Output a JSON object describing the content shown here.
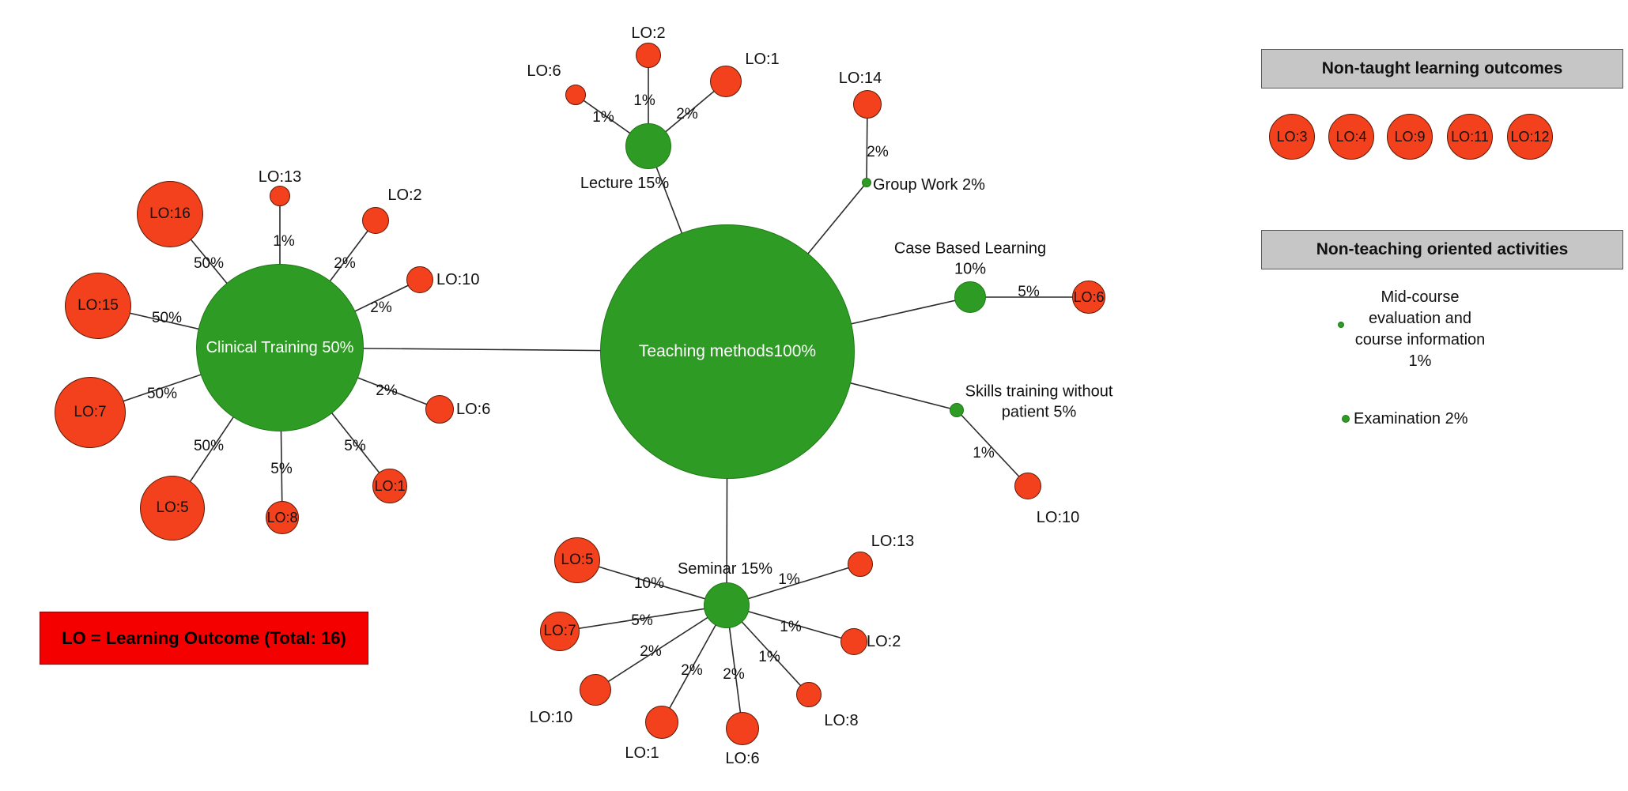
{
  "colors": {
    "method_green": "#2e9c24",
    "outcome_red": "#f2411c",
    "panel_header_gray": "#c6c6c6",
    "legend_red": "#f50000"
  },
  "legend": {
    "label": "LO = Learning Outcome (Total: 16)"
  },
  "panels": {
    "non_taught": {
      "title": "Non-taught learning outcomes",
      "outcomes": [
        "LO:3",
        "LO:4",
        "LO:9",
        "LO:11",
        "LO:12"
      ]
    },
    "non_teaching": {
      "title": "Non-teaching oriented activities",
      "activities": [
        {
          "lines": [
            "Mid-course",
            "evaluation and",
            "course information"
          ],
          "percent": "1%"
        },
        {
          "label": "Examination",
          "percent": "2%"
        }
      ]
    }
  },
  "graph": {
    "nodes": [
      {
        "id": "teaching",
        "kind": "method",
        "lines": [
          "Teaching methods",
          "100%"
        ],
        "inside": true
      },
      {
        "id": "clinical",
        "kind": "method",
        "lines": [
          "Clinical Training 50%"
        ],
        "inside": true
      },
      {
        "id": "lecture",
        "kind": "method",
        "lines": [
          "Lecture 15%"
        ],
        "inside": false
      },
      {
        "id": "groupwork",
        "kind": "method-dot",
        "lines": [
          "Group Work 2%"
        ],
        "inside": false
      },
      {
        "id": "cbl",
        "kind": "method",
        "lines": [
          "Case Based Learning",
          "10%"
        ],
        "inside": false
      },
      {
        "id": "skills",
        "kind": "method-dot",
        "lines": [
          "Skills training without",
          "patient 5%"
        ],
        "inside": false
      },
      {
        "id": "seminar",
        "kind": "method",
        "lines": [
          "Seminar 15%"
        ],
        "inside": false
      },
      {
        "id": "c16",
        "kind": "outcome",
        "lines": [
          "LO:16"
        ],
        "inside": true
      },
      {
        "id": "c13",
        "kind": "outcome",
        "lines": [
          "LO:13"
        ],
        "inside": false
      },
      {
        "id": "c2",
        "kind": "outcome",
        "lines": [
          "LO:2"
        ],
        "inside": false
      },
      {
        "id": "c15",
        "kind": "outcome",
        "lines": [
          "LO:15"
        ],
        "inside": true
      },
      {
        "id": "c10",
        "kind": "outcome",
        "lines": [
          "LO:10"
        ],
        "inside": false
      },
      {
        "id": "c7",
        "kind": "outcome",
        "lines": [
          "LO:7"
        ],
        "inside": true
      },
      {
        "id": "c6",
        "kind": "outcome",
        "lines": [
          "LO:6"
        ],
        "inside": false
      },
      {
        "id": "c5",
        "kind": "outcome",
        "lines": [
          "LO:5"
        ],
        "inside": true
      },
      {
        "id": "c8",
        "kind": "outcome",
        "lines": [
          "LO:8"
        ],
        "inside": true
      },
      {
        "id": "c1",
        "kind": "outcome",
        "lines": [
          "LO:1"
        ],
        "inside": true
      },
      {
        "id": "l6",
        "kind": "outcome",
        "lines": [
          "LO:6"
        ],
        "inside": false
      },
      {
        "id": "l2",
        "kind": "outcome",
        "lines": [
          "LO:2"
        ],
        "inside": false
      },
      {
        "id": "l1",
        "kind": "outcome",
        "lines": [
          "LO:1"
        ],
        "inside": false
      },
      {
        "id": "g14",
        "kind": "outcome",
        "lines": [
          "LO:14"
        ],
        "inside": false
      },
      {
        "id": "b6",
        "kind": "outcome",
        "lines": [
          "LO:6"
        ],
        "inside": true
      },
      {
        "id": "s10",
        "kind": "outcome",
        "lines": [
          "LO:10"
        ],
        "inside": false
      },
      {
        "id": "m5",
        "kind": "outcome",
        "lines": [
          "LO:5"
        ],
        "inside": true
      },
      {
        "id": "m13",
        "kind": "outcome",
        "lines": [
          "LO:13"
        ],
        "inside": false
      },
      {
        "id": "m7",
        "kind": "outcome",
        "lines": [
          "LO:7"
        ],
        "inside": true
      },
      {
        "id": "m2",
        "kind": "outcome",
        "lines": [
          "LO:2"
        ],
        "inside": false
      },
      {
        "id": "m10",
        "kind": "outcome",
        "lines": [
          "LO:10"
        ],
        "inside": false
      },
      {
        "id": "m8",
        "kind": "outcome",
        "lines": [
          "LO:8"
        ],
        "inside": false
      },
      {
        "id": "m1",
        "kind": "outcome",
        "lines": [
          "LO:1"
        ],
        "inside": false
      },
      {
        "id": "m6",
        "kind": "outcome",
        "lines": [
          "LO:6"
        ],
        "inside": false
      }
    ],
    "edges": [
      {
        "from": "teaching",
        "to": "clinical",
        "label": ""
      },
      {
        "from": "teaching",
        "to": "lecture",
        "label": ""
      },
      {
        "from": "teaching",
        "to": "groupwork",
        "label": ""
      },
      {
        "from": "teaching",
        "to": "cbl",
        "label": ""
      },
      {
        "from": "teaching",
        "to": "skills",
        "label": ""
      },
      {
        "from": "teaching",
        "to": "seminar",
        "label": ""
      },
      {
        "from": "clinical",
        "to": "c16",
        "label": "50%"
      },
      {
        "from": "clinical",
        "to": "c13",
        "label": "1%"
      },
      {
        "from": "clinical",
        "to": "c2",
        "label": "2%"
      },
      {
        "from": "clinical",
        "to": "c15",
        "label": "50%"
      },
      {
        "from": "clinical",
        "to": "c10",
        "label": "2%"
      },
      {
        "from": "clinical",
        "to": "c7",
        "label": "50%"
      },
      {
        "from": "clinical",
        "to": "c6",
        "label": "2%"
      },
      {
        "from": "clinical",
        "to": "c5",
        "label": "50%"
      },
      {
        "from": "clinical",
        "to": "c8",
        "label": "5%"
      },
      {
        "from": "clinical",
        "to": "c1",
        "label": "5%"
      },
      {
        "from": "lecture",
        "to": "l6",
        "label": "1%"
      },
      {
        "from": "lecture",
        "to": "l2",
        "label": "1%"
      },
      {
        "from": "lecture",
        "to": "l1",
        "label": "2%"
      },
      {
        "from": "groupwork",
        "to": "g14",
        "label": "2%"
      },
      {
        "from": "cbl",
        "to": "b6",
        "label": "5%"
      },
      {
        "from": "skills",
        "to": "s10",
        "label": "1%"
      },
      {
        "from": "seminar",
        "to": "m5",
        "label": "10%"
      },
      {
        "from": "seminar",
        "to": "m13",
        "label": "1%"
      },
      {
        "from": "seminar",
        "to": "m7",
        "label": "5%"
      },
      {
        "from": "seminar",
        "to": "m2",
        "label": "1%"
      },
      {
        "from": "seminar",
        "to": "m10",
        "label": "2%"
      },
      {
        "from": "seminar",
        "to": "m8",
        "label": "1%"
      },
      {
        "from": "seminar",
        "to": "m1",
        "label": "2%"
      },
      {
        "from": "seminar",
        "to": "m6",
        "label": "2%"
      }
    ]
  }
}
